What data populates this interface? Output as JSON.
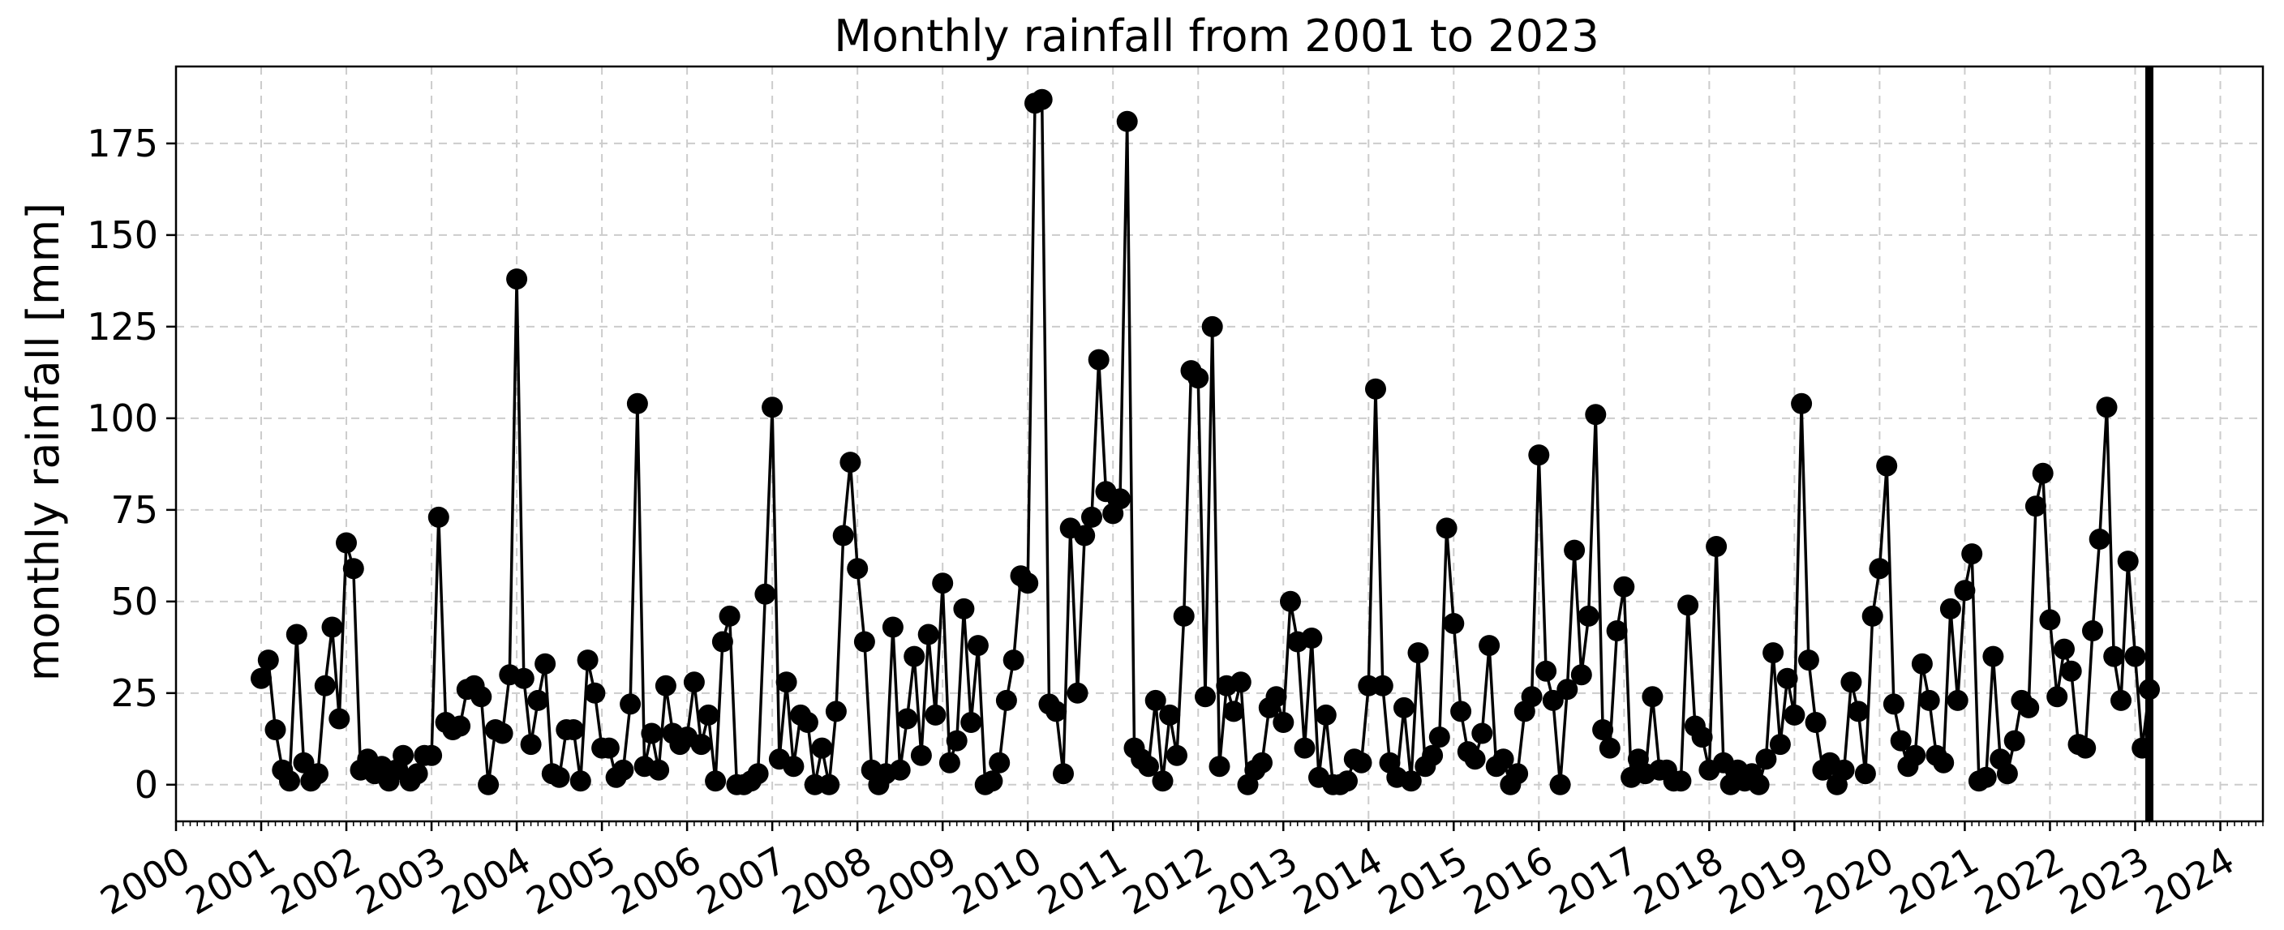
{
  "chart_data": {
    "type": "line",
    "title": "Monthly rainfall from 2001  to 2023",
    "xlabel": "",
    "ylabel": "monthly rainfall [mm]",
    "xlim": [
      "2000-01-01",
      "2024-07-01"
    ],
    "ylim": [
      -10,
      196
    ],
    "yticks": [
      0,
      25,
      50,
      75,
      100,
      125,
      150,
      175
    ],
    "xticks": [
      "2000",
      "2001",
      "2002",
      "2003",
      "2004",
      "2005",
      "2006",
      "2007",
      "2008",
      "2009",
      "2010",
      "2011",
      "2012",
      "2013",
      "2014",
      "2015",
      "2016",
      "2017",
      "2018",
      "2019",
      "2020",
      "2021",
      "2022",
      "2023",
      "2024"
    ],
    "grid": true,
    "marker": "circle",
    "line_color": "#000000",
    "vline_date": "2023-03-01",
    "start": "2001-01",
    "series": [
      {
        "values": [
          29,
          34,
          15,
          4,
          1,
          41,
          6,
          1,
          3,
          27,
          43,
          18,
          66,
          59,
          4,
          7,
          3,
          5,
          1,
          4,
          8,
          1,
          3,
          8,
          8,
          73,
          17,
          15,
          16,
          26,
          27,
          24,
          0,
          15,
          14,
          30,
          138,
          29,
          11,
          23,
          33,
          3,
          2,
          15,
          15,
          1,
          34,
          25,
          10,
          10,
          2,
          4,
          22,
          104,
          5,
          14,
          4,
          27,
          14,
          11,
          13,
          28,
          11,
          19,
          1,
          39,
          46,
          0,
          0,
          1,
          3,
          52,
          103,
          7,
          28,
          5,
          19,
          17,
          0,
          10,
          0,
          20,
          68,
          88,
          59,
          39,
          4,
          0,
          3,
          43,
          4,
          18,
          35,
          8,
          41,
          19,
          55,
          6,
          12,
          48,
          17,
          38,
          0,
          1,
          6,
          23,
          34,
          57,
          55,
          186,
          187,
          22,
          20,
          3,
          70,
          25,
          68,
          73,
          116,
          80,
          74,
          78,
          181,
          10,
          7,
          5,
          23,
          1,
          19,
          8,
          46,
          113,
          111,
          24,
          125,
          5,
          27,
          20,
          28,
          0,
          4,
          6,
          21,
          24,
          17,
          50,
          39,
          10,
          40,
          2,
          19,
          0,
          0,
          1,
          7,
          6,
          27,
          108,
          27,
          6,
          2,
          21,
          1,
          36,
          5,
          8,
          13,
          70,
          44,
          20,
          9,
          7,
          14,
          38,
          5,
          7,
          0,
          3,
          20,
          24,
          90,
          31,
          23,
          0,
          26,
          64,
          30,
          46,
          101,
          15,
          10,
          42,
          54,
          2,
          7,
          3,
          24,
          4,
          4,
          1,
          1,
          49,
          16,
          13,
          4,
          65,
          6,
          0,
          4,
          1,
          3,
          0,
          7,
          36,
          11,
          29,
          19,
          104,
          34,
          17,
          4,
          6,
          0,
          4,
          28,
          20,
          3,
          46,
          59,
          87,
          22,
          12,
          5,
          8,
          33,
          23,
          8,
          6,
          48,
          23,
          53,
          63,
          1,
          2,
          35,
          7,
          3,
          12,
          23,
          21,
          76,
          85,
          45,
          24,
          37,
          31,
          11,
          10,
          42,
          67,
          103,
          35,
          23,
          61,
          35,
          10,
          26
        ]
      }
    ]
  }
}
